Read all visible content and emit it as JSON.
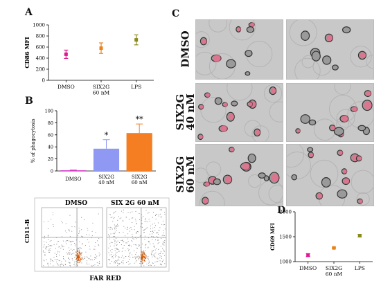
{
  "panels": {
    "a": {
      "letter": "A"
    },
    "b": {
      "letter": "B"
    },
    "c": {
      "letter": "C"
    },
    "d": {
      "letter": "D"
    }
  },
  "chart_data": [
    {
      "id": "A",
      "type": "scatter",
      "ylabel": "CD86 MFI",
      "ylim": [
        0,
        1000
      ],
      "yticks": [
        0,
        200,
        400,
        600,
        800,
        1000
      ],
      "categories": [
        "DMSO",
        "SIX2G|60 nM",
        "LPS"
      ],
      "values": [
        470,
        580,
        730
      ],
      "errors": [
        75,
        95,
        90
      ],
      "colors": [
        "#e0198f",
        "#e8821a",
        "#8a8a1a"
      ]
    },
    {
      "id": "B-bar",
      "type": "bar",
      "ylabel": "% of phagocytosis",
      "ylim": [
        0,
        100
      ],
      "yticks": [
        0,
        20,
        40,
        60,
        80,
        100
      ],
      "categories": [
        "DMSO",
        "SIX2G|40 nM",
        "SIX2G|60 nM"
      ],
      "values": [
        1,
        37,
        63
      ],
      "errors": [
        0.5,
        15,
        15
      ],
      "colors": [
        "#d12cc4",
        "#8f98f2",
        "#f57e22"
      ],
      "annotations": [
        "",
        "*",
        "**"
      ]
    },
    {
      "id": "B-flow",
      "type": "scatter",
      "ylabel": "CD11-B",
      "xlabel": "FAR RED",
      "plots": [
        "DMSO",
        "SIX 2G 60 nM"
      ]
    },
    {
      "id": "D",
      "type": "scatter",
      "ylabel": "CD69 MFI",
      "ylim": [
        1000,
        2000
      ],
      "yticks": [
        1000,
        1500,
        2000
      ],
      "categories": [
        "DMSO",
        "SIX2G|60 nM",
        "LPS"
      ],
      "values": [
        1130,
        1275,
        1520
      ],
      "errors": [
        30,
        15,
        25
      ],
      "colors": [
        "#e0198f",
        "#e8821a",
        "#8a8a1a"
      ]
    }
  ],
  "panel_c": {
    "rows": [
      {
        "label_lines": [
          "DMSO"
        ]
      },
      {
        "label_lines": [
          "SIX2G",
          "40 nM"
        ]
      },
      {
        "label_lines": [
          "SIX2G",
          "60 nM"
        ]
      }
    ]
  }
}
